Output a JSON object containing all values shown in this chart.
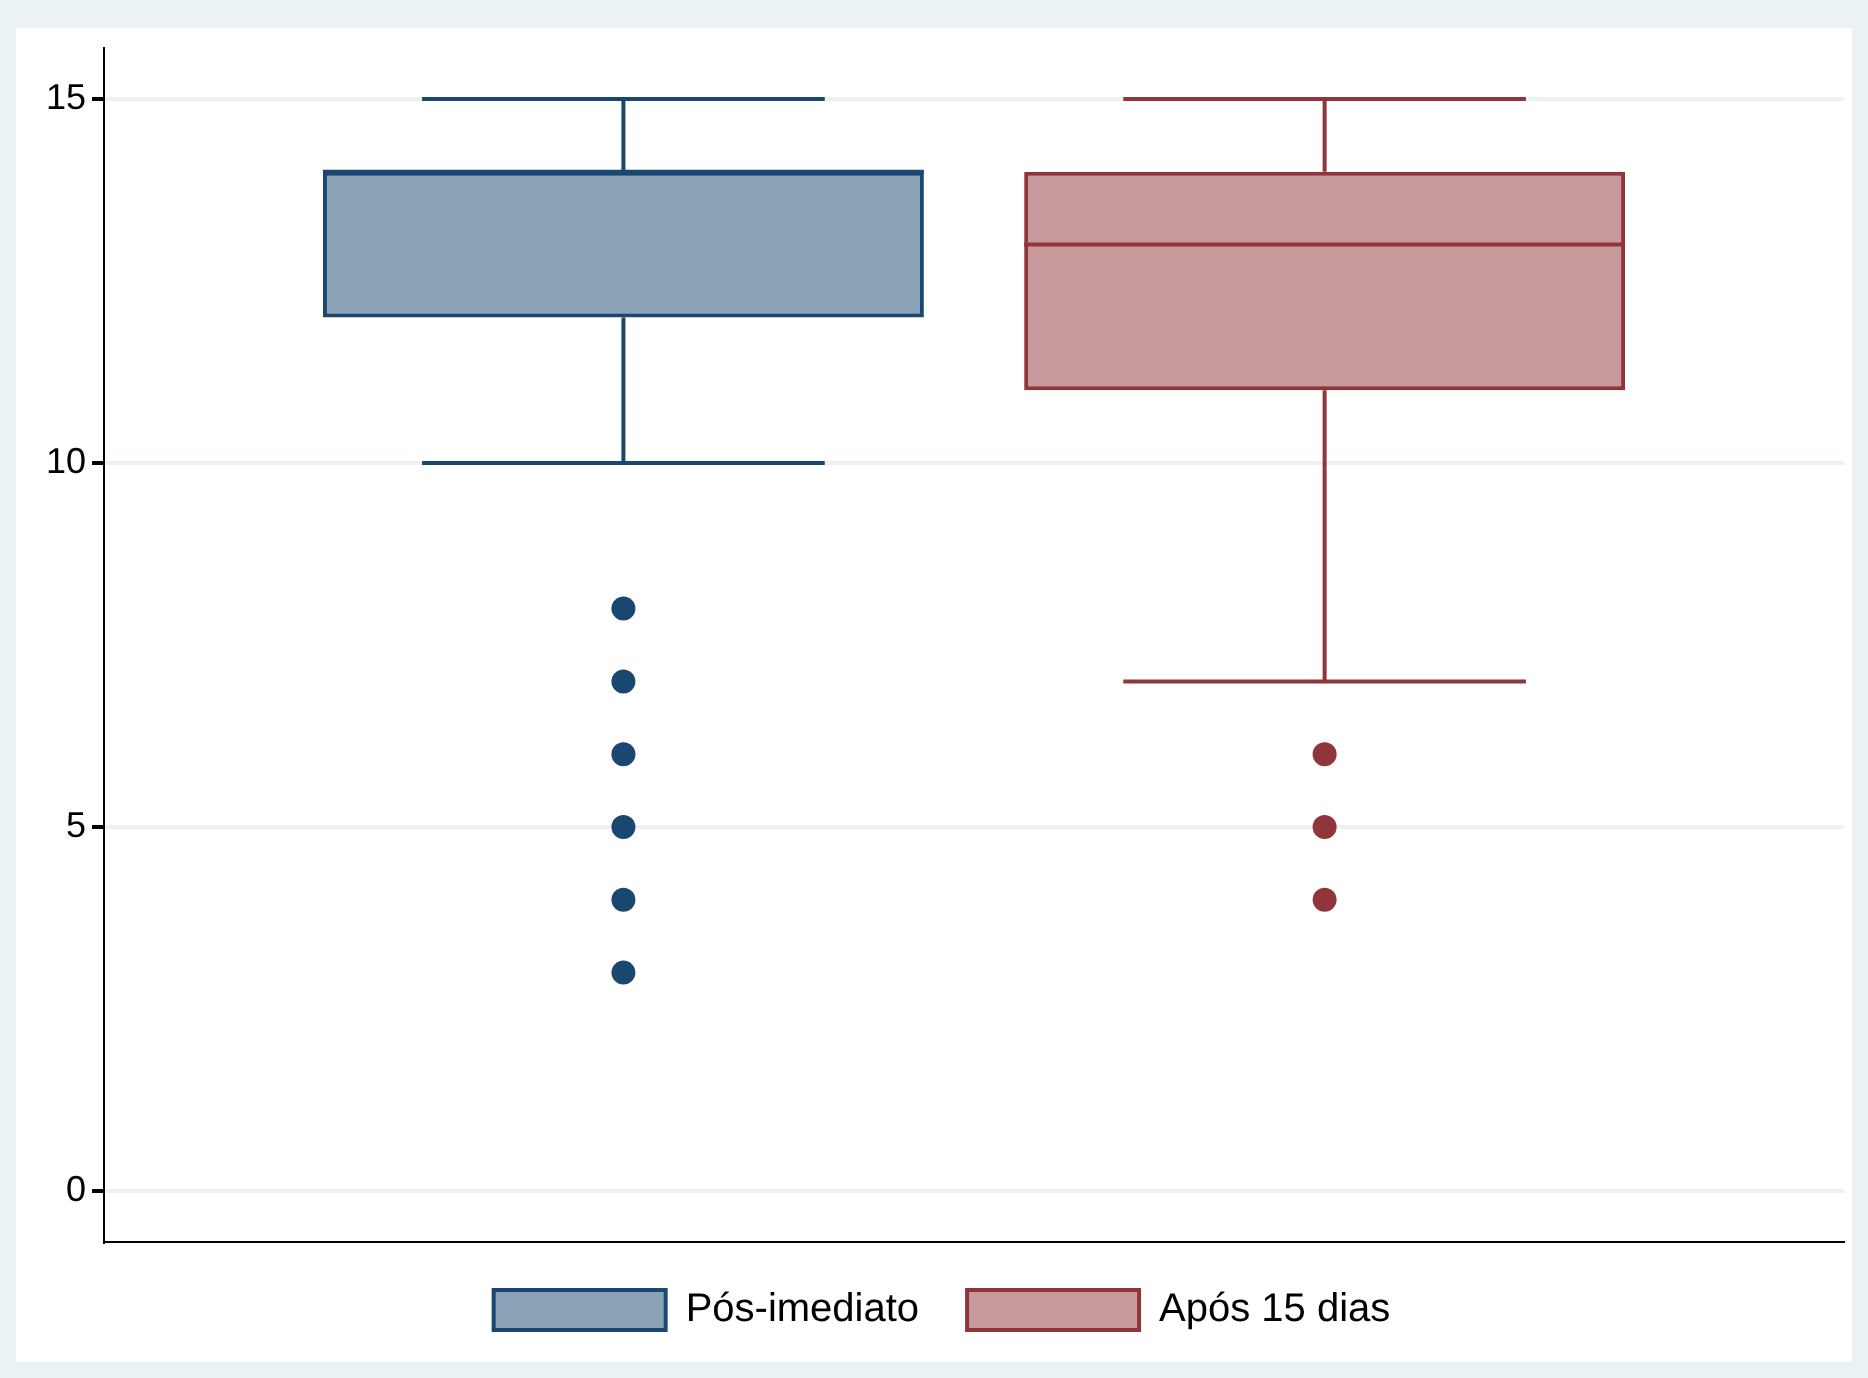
{
  "chart_data": {
    "type": "box",
    "categories": [
      null
    ],
    "series": [
      {
        "name": "Pós-imediato",
        "color": "#1a476f",
        "boxes": [
          {
            "low": 10,
            "q1": 12,
            "median": 14,
            "q3": 14,
            "high": 15,
            "outliers": [
              8,
              7,
              6,
              5,
              4,
              3
            ]
          }
        ]
      },
      {
        "name": "Após 15 dias",
        "color": "#90353b",
        "boxes": [
          {
            "low": 7,
            "q1": 11,
            "median": 13,
            "q3": 14,
            "high": 15,
            "outliers": [
              6,
              5,
              4
            ]
          }
        ]
      }
    ],
    "ylim": [
      -0.7,
      15.7
    ],
    "yticks": [
      0,
      5,
      10,
      15
    ],
    "grid": "y",
    "legend": "bottom",
    "marker": "circle"
  }
}
